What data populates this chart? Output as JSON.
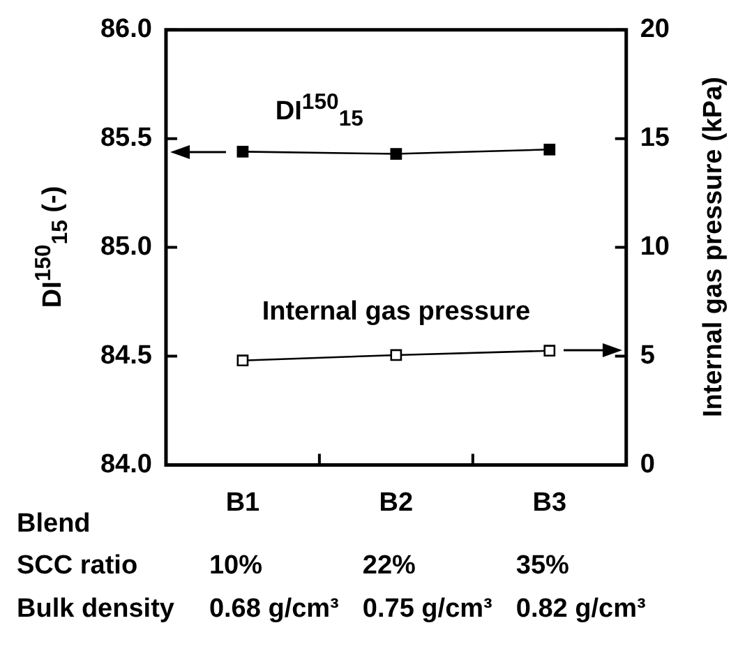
{
  "chart_data": {
    "type": "line",
    "categories": [
      "B1",
      "B2",
      "B3"
    ],
    "xlabel": "Blend",
    "ylabel": "DI$^{150}$$_{15}$ (-)",
    "y2label": "Internal gas pressure (kPa)",
    "series": [
      {
        "name": "DI$^{150}$$_{15}$",
        "color": "#000000",
        "values": [
          85.44,
          85.43,
          85.45
        ]
      },
      {
        "name": "Internal gas pressure",
        "color": "#000000",
        "axis": "y2",
        "values": [
          4.8,
          5.05,
          5.25
        ]
      }
    ],
    "ylim": [
      84,
      86
    ],
    "yticks": [
      {
        "value": 84,
        "label": "84.0"
      },
      {
        "value": 84.5,
        "label": "84.5"
      },
      {
        "value": 85,
        "label": "85.0"
      },
      {
        "value": 85.5,
        "label": "85.5"
      },
      {
        "value": 86,
        "label": "86.0"
      }
    ],
    "y2lim": [
      0,
      20
    ],
    "y2ticks": [
      0,
      5,
      10,
      15,
      20
    ],
    "annotations": [
      "SCC ratio",
      "10%",
      "22%",
      "35%",
      "Bulk density",
      "0.68 g/cm³",
      "0.75 g/cm³",
      "0.82 g/cm³"
    ],
    "grid": false,
    "legend": false,
    "marker": "square",
    "line_style": "solid"
  }
}
